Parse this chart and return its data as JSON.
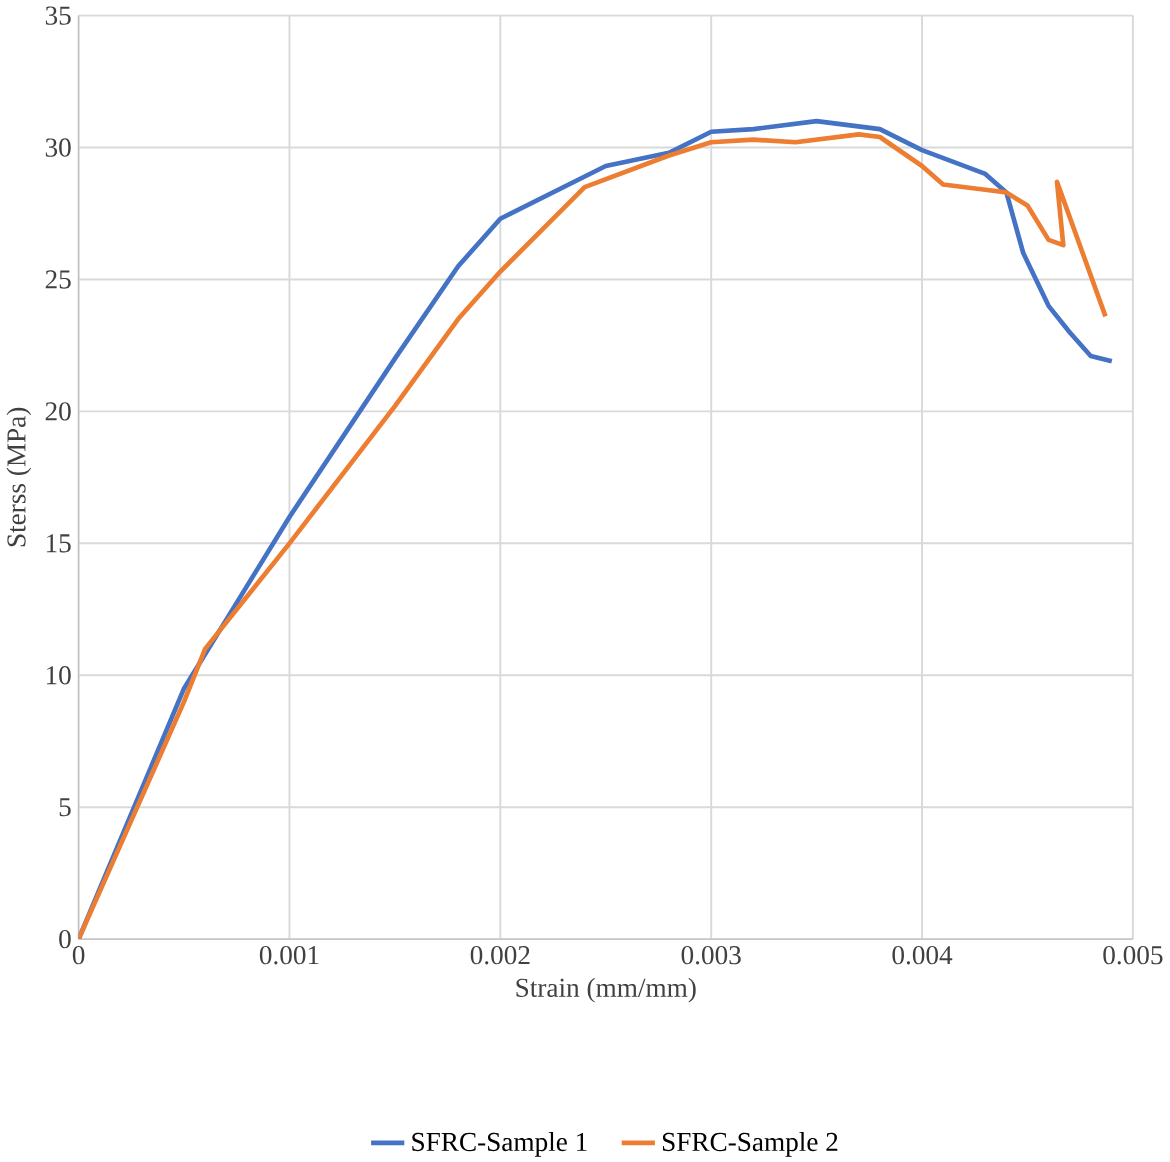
{
  "chart_data": {
    "type": "line",
    "xlabel": "Strain (mm/mm)",
    "ylabel": "Sterss (MPa)",
    "xlim": [
      0,
      0.005
    ],
    "ylim": [
      0,
      35
    ],
    "xticks": [
      0,
      0.001,
      0.002,
      0.003,
      0.004,
      0.005
    ],
    "yticks": [
      0,
      5,
      10,
      15,
      20,
      25,
      30,
      35
    ],
    "grid": true,
    "legend": "bottom",
    "marker": "none",
    "line_style": "solid",
    "series": [
      {
        "name": "SFRC-Sample 1",
        "color": "#4472c4",
        "x": [
          0,
          0.0005,
          0.001,
          0.0015,
          0.0018,
          0.002,
          0.0025,
          0.0028,
          0.003,
          0.0032,
          0.0035,
          0.0038,
          0.004,
          0.0043,
          0.0044,
          0.00448,
          0.0046,
          0.0047,
          0.0048,
          0.0049
        ],
        "values": [
          0,
          9.5,
          16,
          22,
          25.5,
          27.3,
          29.3,
          29.8,
          30.6,
          30.7,
          31,
          30.7,
          29.9,
          29,
          28.3,
          26,
          24,
          23,
          22.1,
          21.9
        ]
      },
      {
        "name": "SFRC-Sample 2",
        "color": "#ed7d31",
        "x": [
          0,
          0.0005,
          0.0006,
          0.001,
          0.0015,
          0.0018,
          0.002,
          0.0024,
          0.0028,
          0.003,
          0.0032,
          0.0034,
          0.0037,
          0.0038,
          0.004,
          0.0041,
          0.0043,
          0.0044,
          0.0045,
          0.0046,
          0.00467,
          0.00464,
          0.00487
        ],
        "values": [
          0,
          9,
          11,
          15,
          20.2,
          23.5,
          25.3,
          28.5,
          29.7,
          30.2,
          30.3,
          30.2,
          30.5,
          30.4,
          29.3,
          28.6,
          28.4,
          28.3,
          27.8,
          26.5,
          26.3,
          28.7,
          23.6
        ]
      }
    ]
  }
}
